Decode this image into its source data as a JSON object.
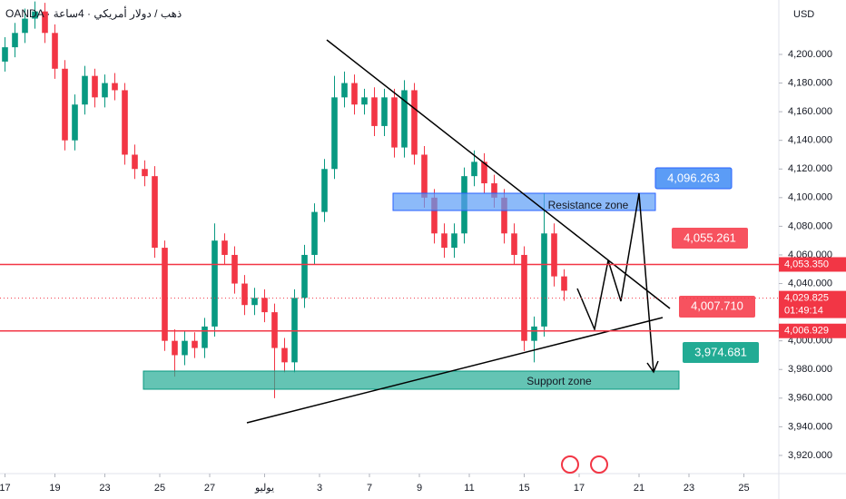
{
  "header": {
    "source": "OANDA · ذهب / دولار أمريكي · 4ساعة",
    "currency": "USD"
  },
  "chart_data": {
    "type": "candlestick",
    "x": [
      1,
      3,
      5,
      7,
      9,
      11,
      13,
      15,
      17,
      19,
      21,
      23,
      25,
      27,
      29,
      31,
      33,
      35,
      37,
      39,
      41,
      43,
      45,
      47,
      49,
      51,
      53,
      55,
      57,
      59,
      61,
      63,
      65,
      67,
      69,
      71,
      73,
      75,
      77,
      79,
      81,
      83,
      85,
      87,
      89,
      91,
      93,
      95,
      97,
      99,
      101,
      103,
      105,
      107,
      109,
      111,
      113
    ],
    "open": [
      4195,
      4205,
      4215,
      4225,
      4230,
      4215,
      4190,
      4140,
      4165,
      4185,
      4170,
      4180,
      4175,
      4130,
      4120,
      4115,
      4065,
      4000,
      3990,
      4000,
      3995,
      4010,
      4070,
      4060,
      4040,
      4025,
      4030,
      4020,
      3995,
      3985,
      4030,
      4060,
      4090,
      4120,
      4170,
      4180,
      4165,
      4170,
      4150,
      4170,
      4135,
      4175,
      4130,
      4100,
      4075,
      4065,
      4075,
      4115,
      4125,
      4110,
      4100,
      4075,
      4060,
      4000,
      4010,
      4075,
      4045
    ],
    "high": [
      4212,
      4222,
      4232,
      4237,
      4236,
      4221,
      4196,
      4172,
      4192,
      4190,
      4186,
      4187,
      4180,
      4137,
      4126,
      4122,
      4070,
      4008,
      4007,
      4006,
      4016,
      4082,
      4075,
      4066,
      4046,
      4037,
      4036,
      4026,
      4002,
      4036,
      4067,
      4096,
      4127,
      4185,
      4188,
      4186,
      4176,
      4177,
      4176,
      4176,
      4182,
      4180,
      4136,
      4106,
      4082,
      4082,
      4121,
      4133,
      4131,
      4116,
      4106,
      4082,
      4066,
      4017,
      4103,
      4082,
      4050
    ],
    "low": [
      4188,
      4198,
      4208,
      4218,
      4208,
      4183,
      4133,
      4133,
      4158,
      4163,
      4163,
      4168,
      4123,
      4113,
      4108,
      4058,
      3993,
      3975,
      3983,
      3988,
      3988,
      4003,
      4053,
      4033,
      4018,
      4018,
      4013,
      3960,
      3978,
      3978,
      4023,
      4053,
      4083,
      4113,
      4163,
      4158,
      4158,
      4143,
      4143,
      4128,
      4128,
      4123,
      4093,
      4068,
      4058,
      4058,
      4068,
      4108,
      4103,
      4093,
      4068,
      4053,
      3993,
      3985,
      4003,
      4038,
      4028
    ],
    "close": [
      4205,
      4215,
      4225,
      4230,
      4215,
      4190,
      4140,
      4165,
      4185,
      4170,
      4180,
      4175,
      4130,
      4120,
      4115,
      4065,
      4000,
      3990,
      4000,
      3995,
      4010,
      4070,
      4060,
      4040,
      4025,
      4030,
      4020,
      3995,
      3985,
      4030,
      4060,
      4090,
      4120,
      4170,
      4180,
      4165,
      4170,
      4150,
      4170,
      4135,
      4175,
      4130,
      4100,
      4075,
      4065,
      4075,
      4115,
      4125,
      4110,
      4100,
      4075,
      4060,
      4000,
      4010,
      4075,
      4045,
      4035
    ],
    "up_color": "#089981",
    "down_color": "#f23645",
    "xlim": [
      0,
      156
    ],
    "xticks": [
      {
        "value": 1,
        "label": "17"
      },
      {
        "value": 11,
        "label": "19"
      },
      {
        "value": 21,
        "label": "23"
      },
      {
        "value": 32,
        "label": "25"
      },
      {
        "value": 42,
        "label": "27"
      },
      {
        "value": 53,
        "label": "يوليو"
      },
      {
        "value": 64,
        "label": "3"
      },
      {
        "value": 74,
        "label": "7"
      },
      {
        "value": 84,
        "label": "9"
      },
      {
        "value": 94,
        "label": "11"
      },
      {
        "value": 105,
        "label": "15"
      },
      {
        "value": 116,
        "label": "17"
      },
      {
        "value": 128,
        "label": "21"
      },
      {
        "value": 138,
        "label": "23"
      },
      {
        "value": 149,
        "label": "25"
      }
    ],
    "ylim": [
      3907.3,
      4238
    ],
    "yticks": [
      {
        "value": 3920,
        "label": "3,920.000"
      },
      {
        "value": 3940,
        "label": "3,940.000"
      },
      {
        "value": 3960,
        "label": "3,960.000"
      },
      {
        "value": 3980,
        "label": "3,980.000"
      },
      {
        "value": 4000,
        "label": "4,000.000"
      },
      {
        "value": 4020,
        "label": "4,020.000"
      },
      {
        "value": 4040,
        "label": "4,040.000"
      },
      {
        "value": 4060,
        "label": "4,060.000"
      },
      {
        "value": 4080,
        "label": "4,080.000"
      },
      {
        "value": 4100,
        "label": "4,100.000"
      },
      {
        "value": 4120,
        "label": "4,120.000"
      },
      {
        "value": 4140,
        "label": "4,140.000"
      },
      {
        "value": 4160,
        "label": "4,160.000"
      },
      {
        "value": 4180,
        "label": "4,180.000"
      },
      {
        "value": 4200,
        "label": "4,200.000"
      }
    ],
    "price_lines": [
      {
        "value": 4053.35,
        "label": "4,053.350",
        "color": "#f23645"
      },
      {
        "value": 4006.929,
        "label": "4,006.929",
        "color": "#f23645"
      }
    ],
    "current_price": {
      "value": 4029.825,
      "label": "4,029.825",
      "countdown": "01:49:14",
      "color": "#f23645"
    },
    "zones": [
      "Resistance zone",
      "Support zone"
    ],
    "targets": [
      "4,096.263",
      "4,055.261",
      "4,007.710",
      "3,974.681"
    ]
  }
}
